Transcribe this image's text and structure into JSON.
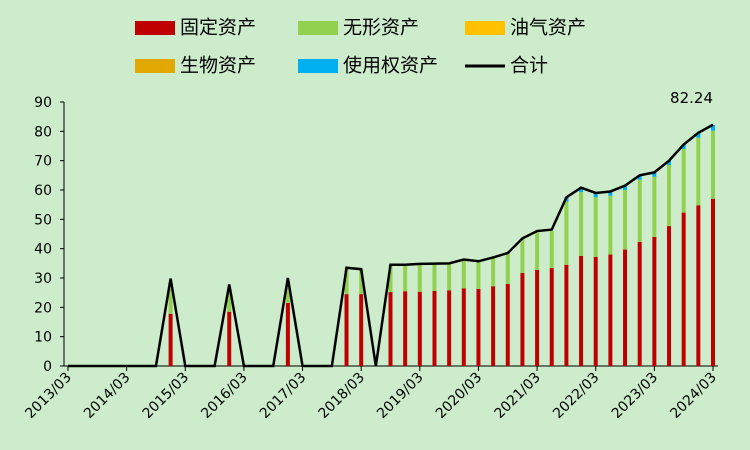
{
  "chart_data": {
    "type": "stacked-bar-line",
    "categories": [
      "2013/03",
      null,
      null,
      null,
      "2014/03",
      null,
      null,
      null,
      "2015/03",
      null,
      null,
      null,
      "2016/03",
      null,
      null,
      null,
      "2017/03",
      null,
      null,
      null,
      "2018/03",
      null,
      null,
      null,
      "2019/03",
      null,
      null,
      null,
      "2020/03",
      null,
      null,
      null,
      "2021/03",
      null,
      null,
      null,
      "2022/03",
      null,
      null,
      null,
      "2023/03",
      null,
      null,
      null,
      "2024/03"
    ],
    "series": [
      {
        "name": "固定资产",
        "color": "#c00000",
        "kind": "bar",
        "values": [
          0,
          0,
          0,
          0,
          0,
          0,
          0,
          17.8,
          0,
          0,
          0,
          18.5,
          0,
          0,
          0,
          21.5,
          0,
          0,
          0,
          24.5,
          24.5,
          0,
          25.2,
          25.5,
          25.3,
          25.6,
          25.8,
          26.5,
          26.3,
          27.2,
          28,
          31.7,
          32.8,
          33.4,
          34.5,
          37.5,
          37.2,
          38,
          39.7,
          42.3,
          44,
          47.7,
          52.3,
          54.8,
          57
        ]
      },
      {
        "name": "无形资产",
        "color": "#92d050",
        "kind": "bar",
        "values": [
          0,
          0,
          0,
          0,
          0,
          0,
          0,
          8.5,
          0,
          0,
          0,
          7,
          0,
          0,
          0,
          6.5,
          0,
          0,
          0,
          9,
          8.5,
          0,
          9.3,
          9,
          9.5,
          9.3,
          9.2,
          9.8,
          9.4,
          9.8,
          10.5,
          11.8,
          12.7,
          12.6,
          21.5,
          21.8,
          20.3,
          20,
          20.3,
          21.2,
          20.5,
          20.8,
          21.7,
          23,
          23.2
        ]
      },
      {
        "name": "油气资产",
        "color": "#ffc000",
        "kind": "bar",
        "values": [
          0,
          0,
          0,
          0,
          0,
          0,
          0,
          0,
          0,
          0,
          0,
          0,
          0,
          0,
          0,
          0,
          0,
          0,
          0,
          0,
          0,
          0,
          0,
          0,
          0,
          0,
          0,
          0,
          0,
          0,
          0,
          0,
          0,
          0,
          0,
          0,
          0,
          0,
          0,
          0,
          0,
          0,
          0,
          0,
          0
        ]
      },
      {
        "name": "生物资产",
        "color": "#e0a800",
        "kind": "bar",
        "values": [
          0,
          0,
          0,
          0,
          0,
          0,
          0,
          0,
          0,
          0,
          0,
          0,
          0,
          0,
          0,
          0,
          0,
          0,
          0,
          0,
          0,
          0,
          0,
          0,
          0,
          0,
          0,
          0,
          0,
          0,
          0,
          0,
          0,
          0,
          0,
          0,
          0,
          0,
          0,
          0,
          0,
          0,
          0,
          0,
          0
        ]
      },
      {
        "name": "使用权资产",
        "color": "#00b0f0",
        "kind": "bar",
        "values": [
          0,
          0,
          0,
          0,
          0,
          0,
          0,
          0,
          0,
          0,
          0,
          0,
          0,
          0,
          0,
          0,
          0,
          0,
          0,
          0,
          0,
          0,
          0,
          0,
          0,
          0,
          0,
          0,
          0,
          0,
          0,
          0,
          0,
          0,
          1.5,
          1.5,
          1.5,
          1.5,
          1.5,
          1.5,
          1.5,
          1.5,
          1.5,
          1.7,
          2
        ]
      },
      {
        "name": "合计",
        "color": "#000000",
        "kind": "line",
        "values": [
          0,
          0,
          0,
          0,
          0,
          0,
          0,
          29.8,
          0,
          0,
          0,
          27.8,
          0,
          0,
          0,
          30,
          0,
          0,
          0,
          33.5,
          33,
          0,
          34.5,
          34.5,
          34.8,
          34.9,
          35,
          36.3,
          35.7,
          37,
          38.5,
          43.5,
          46,
          46.5,
          57.5,
          60.8,
          59,
          59.5,
          61.5,
          65,
          66,
          70,
          75.5,
          79.5,
          82.24
        ],
        "value_labels": [
          null,
          null,
          null,
          null,
          null,
          null,
          null,
          null,
          null,
          null,
          null,
          null,
          null,
          null,
          null,
          null,
          null,
          null,
          null,
          null,
          null,
          null,
          null,
          null,
          null,
          null,
          null,
          null,
          null,
          null,
          null,
          null,
          null,
          null,
          null,
          null,
          null,
          null,
          null,
          null,
          null,
          null,
          null,
          null,
          "82.24"
        ]
      }
    ],
    "ylim": [
      0,
      90
    ],
    "yticks": [
      0,
      10,
      20,
      30,
      40,
      50,
      60,
      70,
      80,
      90
    ],
    "legend": "top"
  }
}
